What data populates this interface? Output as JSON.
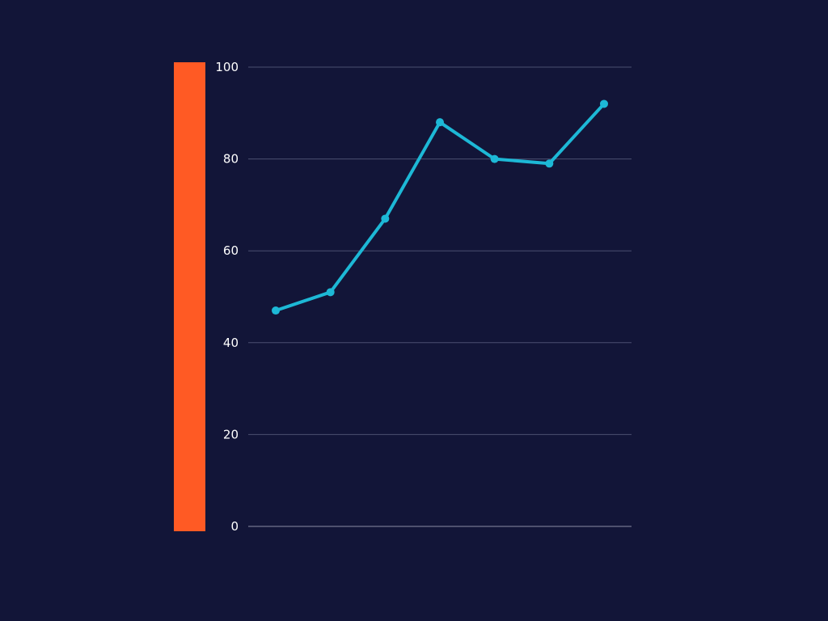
{
  "colors": {
    "background": "#121538",
    "accent_bar": "#FF5A24",
    "line": "#1DB8D6",
    "grid": "#4b4f70",
    "tick_text": "#ffffff"
  },
  "chart_data": {
    "type": "line",
    "title": "",
    "xlabel": "",
    "ylabel": "",
    "ylim": [
      0,
      100
    ],
    "y_ticks": [
      0,
      20,
      40,
      60,
      80,
      100
    ],
    "x": [
      1,
      2,
      3,
      4,
      5,
      6,
      7
    ],
    "series": [
      {
        "values": [
          47,
          51,
          67,
          88,
          80,
          79,
          92
        ]
      }
    ],
    "grid": true,
    "legend": "none"
  }
}
